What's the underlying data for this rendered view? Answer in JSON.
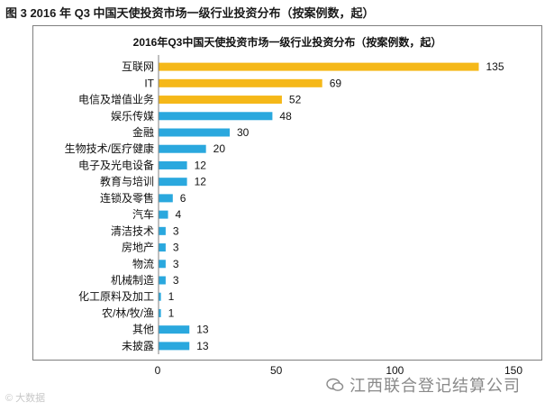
{
  "figure_caption": "图 3 2016 年 Q3 中国天使投资市场一级行业投资分布（按案例数，起）",
  "watermark_left": "© 大数据",
  "watermark_right": "江西联合登记结算公司",
  "colors": {
    "highlight": "#f5b819",
    "normal": "#2aa8de",
    "axis": "#7f7f7f"
  },
  "chart_data": {
    "type": "bar",
    "orientation": "horizontal",
    "title": "2016年Q3中国天使投资市场一级行业投资分布（按案例数，起）",
    "categories": [
      "互联网",
      "IT",
      "电信及增值业务",
      "娱乐传媒",
      "金融",
      "生物技术/医疗健康",
      "电子及光电设备",
      "教育与培训",
      "连锁及零售",
      "汽车",
      "清洁技术",
      "房地产",
      "物流",
      "机械制造",
      "化工原料及加工",
      "农/林/牧/渔",
      "其他",
      "未披露"
    ],
    "values": [
      135,
      69,
      52,
      48,
      30,
      20,
      12,
      12,
      6,
      4,
      3,
      3,
      3,
      3,
      1,
      1,
      13,
      13
    ],
    "highlight_count": 3,
    "xlim": [
      0,
      150
    ],
    "xticks": [
      0,
      50,
      100,
      150
    ],
    "xlabel": "",
    "ylabel": ""
  }
}
